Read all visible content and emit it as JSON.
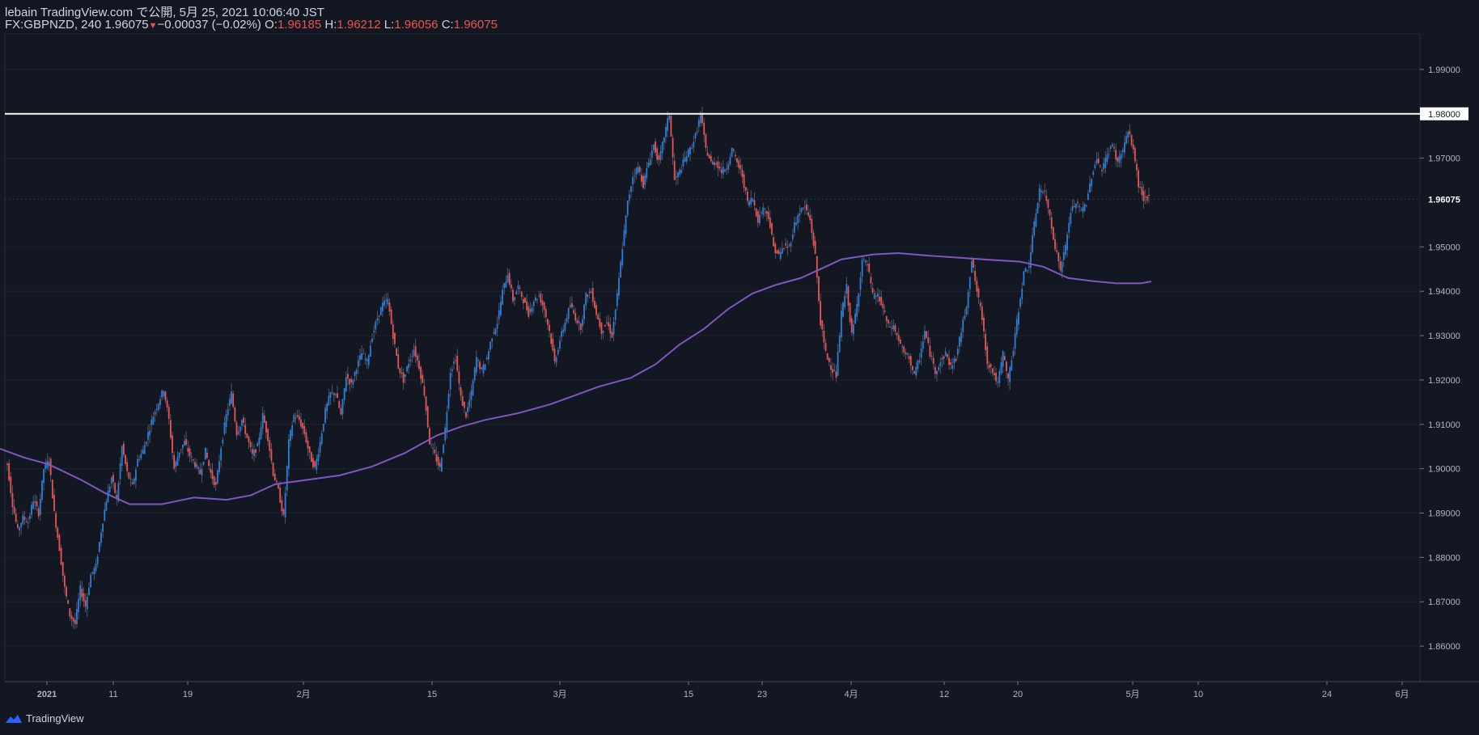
{
  "header": {
    "publish_line": "lebain TradingView.com で公開, 5月 25, 2021 10:06:40 JST",
    "symbol": "FX:GBPNZD, 240",
    "last": "1.96075",
    "change_arrow": "▼",
    "change": "−0.00037 (−0.02%)",
    "o_label": "O:",
    "o_val": "1.96185",
    "h_label": "H:",
    "h_val": "1.96212",
    "l_label": "L:",
    "l_val": "1.96056",
    "c_label": "C:",
    "c_val": "1.96075"
  },
  "brand": {
    "label": "TradingView"
  },
  "colors": {
    "background": "#131722",
    "up": "#2a7fde",
    "down": "#ef5350",
    "ma": "#7e57c2",
    "hline": "#ffffff",
    "grid": "#1e222d"
  },
  "chart_data": {
    "type": "candlestick",
    "ylim": [
      1.852,
      1.998
    ],
    "y_ticks": [
      "1.99000",
      "1.98000",
      "1.97000",
      "1.96075",
      "1.95000",
      "1.94000",
      "1.93000",
      "1.92000",
      "1.91000",
      "1.90000",
      "1.89000",
      "1.88000",
      "1.87000",
      "1.86000"
    ],
    "y_tick_values": [
      1.99,
      1.98,
      1.97,
      1.96075,
      1.95,
      1.94,
      1.93,
      1.92,
      1.91,
      1.9,
      1.89,
      1.88,
      1.87,
      1.86
    ],
    "x_ticks": [
      "2021",
      "11",
      "19",
      "2月",
      "15",
      "3月",
      "15",
      "23",
      "4月",
      "12",
      "20",
      "5月",
      "10",
      "24",
      "6月"
    ],
    "horizontal_line": {
      "value": 1.98,
      "label": "1.98000"
    },
    "current_price": {
      "value": 1.96075,
      "label": "1.96075"
    },
    "price_path": [
      1.901,
      1.892,
      1.886,
      1.889,
      1.888,
      1.893,
      1.89,
      1.9,
      1.902,
      1.89,
      1.882,
      1.873,
      1.867,
      1.865,
      1.873,
      1.869,
      1.876,
      1.878,
      1.886,
      1.893,
      1.898,
      1.893,
      1.905,
      1.899,
      1.896,
      1.902,
      1.904,
      1.908,
      1.912,
      1.915,
      1.918,
      1.911,
      1.9,
      1.904,
      1.906,
      1.903,
      1.901,
      1.899,
      1.904,
      1.899,
      1.896,
      1.905,
      1.912,
      1.917,
      1.908,
      1.911,
      1.907,
      1.903,
      1.905,
      1.912,
      1.907,
      1.899,
      1.895,
      1.889,
      1.906,
      1.912,
      1.911,
      1.908,
      1.903,
      1.9,
      1.906,
      1.913,
      1.917,
      1.917,
      1.912,
      1.921,
      1.919,
      1.923,
      1.926,
      1.924,
      1.93,
      1.934,
      1.937,
      1.938,
      1.93,
      1.923,
      1.92,
      1.924,
      1.927,
      1.923,
      1.917,
      1.906,
      1.903,
      1.9,
      1.909,
      1.922,
      1.925,
      1.916,
      1.912,
      1.917,
      1.925,
      1.922,
      1.925,
      1.93,
      1.933,
      1.94,
      1.944,
      1.938,
      1.941,
      1.938,
      1.935,
      1.938,
      1.939,
      1.936,
      1.931,
      1.924,
      1.929,
      1.933,
      1.937,
      1.934,
      1.932,
      1.939,
      1.94,
      1.935,
      1.931,
      1.933,
      1.93,
      1.939,
      1.95,
      1.96,
      1.966,
      1.968,
      1.964,
      1.969,
      1.973,
      1.969,
      1.975,
      1.98,
      1.965,
      1.967,
      1.97,
      1.972,
      1.975,
      1.98,
      1.972,
      1.969,
      1.969,
      1.967,
      1.968,
      1.972,
      1.969,
      1.966,
      1.96,
      1.961,
      1.956,
      1.959,
      1.957,
      1.95,
      1.948,
      1.95,
      1.95,
      1.955,
      1.958,
      1.959,
      1.956,
      1.948,
      1.933,
      1.926,
      1.923,
      1.921,
      1.935,
      1.941,
      1.93,
      1.937,
      1.947,
      1.946,
      1.939,
      1.939,
      1.936,
      1.932,
      1.932,
      1.929,
      1.926,
      1.925,
      1.921,
      1.925,
      1.931,
      1.926,
      1.922,
      1.924,
      1.926,
      1.923,
      1.925,
      1.931,
      1.937,
      1.947,
      1.94,
      1.934,
      1.924,
      1.922,
      1.919,
      1.926,
      1.92,
      1.927,
      1.936,
      1.944,
      1.946,
      1.955,
      1.963,
      1.962,
      1.957,
      1.95,
      1.945,
      1.95,
      1.958,
      1.96,
      1.958,
      1.96,
      1.966,
      1.97,
      1.967,
      1.971,
      1.973,
      1.969,
      1.972,
      1.976,
      1.972,
      1.964,
      1.961,
      1.961
    ],
    "moving_average": [
      [
        0,
        1.9045
      ],
      [
        30,
        1.9025
      ],
      [
        60,
        1.901
      ],
      [
        100,
        1.8975
      ],
      [
        130,
        1.8945
      ],
      [
        160,
        1.892
      ],
      [
        200,
        1.892
      ],
      [
        240,
        1.8935
      ],
      [
        280,
        1.893
      ],
      [
        310,
        1.894
      ],
      [
        340,
        1.8965
      ],
      [
        380,
        1.8975
      ],
      [
        420,
        1.8985
      ],
      [
        460,
        1.9005
      ],
      [
        500,
        1.9035
      ],
      [
        540,
        1.9075
      ],
      [
        570,
        1.9095
      ],
      [
        600,
        1.911
      ],
      [
        640,
        1.9125
      ],
      [
        680,
        1.9145
      ],
      [
        710,
        1.9165
      ],
      [
        740,
        1.9185
      ],
      [
        780,
        1.9205
      ],
      [
        810,
        1.9235
      ],
      [
        840,
        1.928
      ],
      [
        870,
        1.9315
      ],
      [
        900,
        1.936
      ],
      [
        930,
        1.9395
      ],
      [
        960,
        1.9415
      ],
      [
        990,
        1.943
      ],
      [
        1020,
        1.9455
      ],
      [
        1040,
        1.9472
      ],
      [
        1080,
        1.9483
      ],
      [
        1110,
        1.9486
      ],
      [
        1150,
        1.948
      ],
      [
        1190,
        1.9475
      ],
      [
        1230,
        1.947
      ],
      [
        1260,
        1.9467
      ],
      [
        1290,
        1.9455
      ],
      [
        1320,
        1.943
      ],
      [
        1350,
        1.9423
      ],
      [
        1380,
        1.9418
      ],
      [
        1410,
        1.9418
      ],
      [
        1423,
        1.9422
      ]
    ]
  }
}
